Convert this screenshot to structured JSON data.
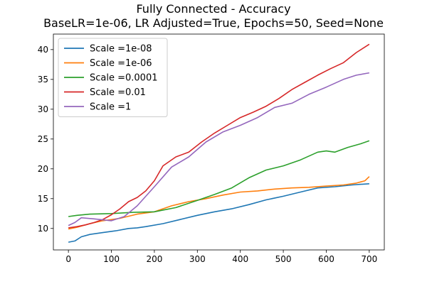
{
  "chart_data": {
    "type": "line",
    "title": "Fully Connected - Accuracy",
    "subtitle": "BaseLR=1e-06, LR Adjusted=True, Epochs=50, Seed=None",
    "xlabel": "",
    "ylabel": "",
    "xlim": [
      -35,
      735
    ],
    "ylim": [
      6.4,
      42.6
    ],
    "xticks": [
      0,
      100,
      200,
      300,
      400,
      500,
      600,
      700
    ],
    "yticks": [
      10,
      15,
      20,
      25,
      30,
      35,
      40
    ],
    "grid": false,
    "legend_position": "upper left",
    "series": [
      {
        "name": "Scale =1e-08",
        "color": "#1f77b4",
        "x": [
          0,
          15,
          30,
          50,
          80,
          110,
          140,
          160,
          180,
          220,
          260,
          300,
          340,
          380,
          420,
          460,
          500,
          540,
          580,
          620,
          660,
          680,
          700
        ],
        "y": [
          7.7,
          7.9,
          8.6,
          9.0,
          9.3,
          9.6,
          10.0,
          10.1,
          10.3,
          10.8,
          11.5,
          12.2,
          12.8,
          13.3,
          14.0,
          14.8,
          15.4,
          16.1,
          16.8,
          17.0,
          17.3,
          17.4,
          17.5
        ]
      },
      {
        "name": "Scale =1e-06",
        "color": "#ff7f0e",
        "x": [
          0,
          20,
          50,
          80,
          120,
          160,
          200,
          240,
          280,
          320,
          360,
          400,
          440,
          480,
          520,
          560,
          600,
          640,
          670,
          690,
          700
        ],
        "y": [
          9.9,
          10.2,
          10.8,
          11.3,
          11.7,
          12.4,
          12.8,
          13.8,
          14.5,
          15.0,
          15.6,
          16.1,
          16.3,
          16.6,
          16.8,
          16.9,
          17.1,
          17.3,
          17.6,
          18.0,
          18.7
        ]
      },
      {
        "name": "Scale =0.0001",
        "color": "#2ca02c",
        "x": [
          0,
          20,
          50,
          100,
          150,
          200,
          250,
          300,
          340,
          380,
          420,
          460,
          500,
          540,
          580,
          600,
          620,
          650,
          680,
          700
        ],
        "y": [
          12.0,
          12.2,
          12.4,
          12.5,
          12.7,
          12.8,
          13.5,
          14.7,
          15.7,
          16.8,
          18.5,
          19.8,
          20.5,
          21.5,
          22.8,
          23.0,
          22.8,
          23.6,
          24.2,
          24.7
        ]
      },
      {
        "name": "Scale =0.01",
        "color": "#d62728",
        "x": [
          0,
          20,
          40,
          60,
          80,
          100,
          120,
          140,
          160,
          180,
          200,
          220,
          250,
          280,
          310,
          340,
          370,
          400,
          430,
          460,
          490,
          520,
          550,
          580,
          610,
          640,
          670,
          700
        ],
        "y": [
          10.1,
          10.3,
          10.6,
          11.0,
          11.5,
          12.3,
          13.3,
          14.5,
          15.2,
          16.3,
          18.0,
          20.5,
          22.0,
          22.8,
          24.5,
          26.0,
          27.3,
          28.6,
          29.5,
          30.5,
          31.8,
          33.3,
          34.5,
          35.7,
          36.8,
          37.8,
          39.5,
          40.9
        ]
      },
      {
        "name": "Scale =1",
        "color": "#9467bd",
        "x": [
          0,
          15,
          30,
          60,
          100,
          130,
          160,
          200,
          240,
          280,
          320,
          360,
          400,
          440,
          480,
          520,
          560,
          600,
          640,
          670,
          700
        ],
        "y": [
          10.5,
          11.0,
          11.8,
          11.6,
          11.3,
          12.0,
          13.8,
          17.0,
          20.3,
          22.0,
          24.5,
          26.2,
          27.3,
          28.6,
          30.3,
          31.0,
          32.5,
          33.7,
          35.0,
          35.7,
          36.1
        ]
      }
    ]
  }
}
